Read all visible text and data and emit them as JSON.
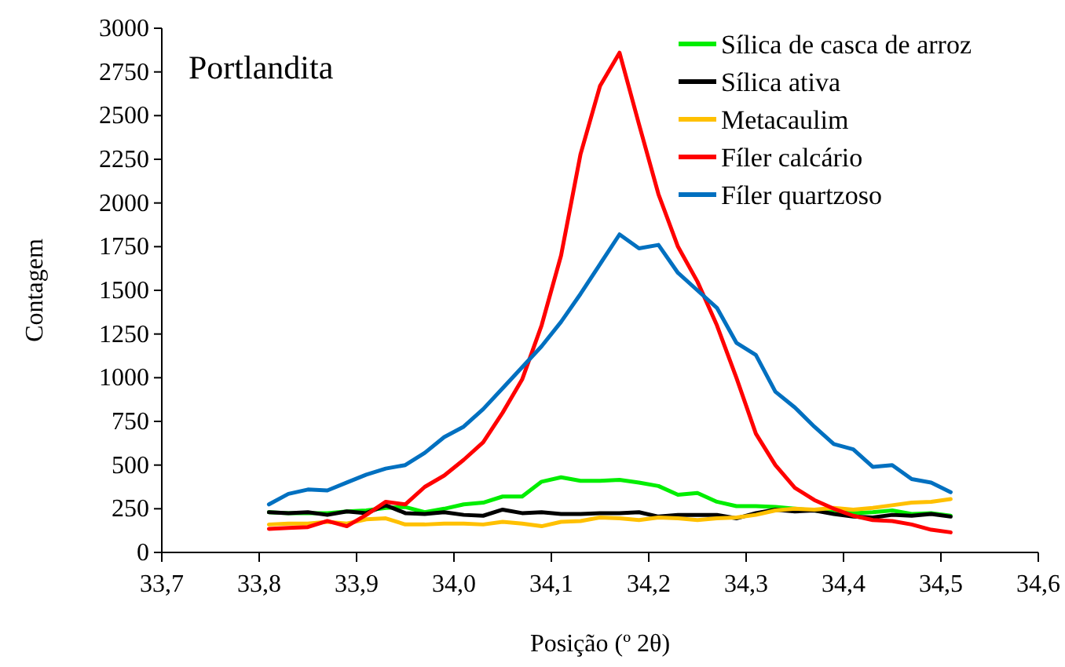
{
  "chart_data": {
    "type": "line",
    "title": "Portlandita",
    "xlabel": "Posição (º 2θ)",
    "ylabel": "Contagem",
    "x": [
      33.81,
      33.83,
      33.85,
      33.87,
      33.89,
      33.91,
      33.93,
      33.95,
      33.97,
      33.99,
      34.01,
      34.03,
      34.05,
      34.07,
      34.09,
      34.11,
      34.13,
      34.15,
      34.17,
      34.19,
      34.21,
      34.23,
      34.25,
      34.27,
      34.29,
      34.31,
      34.33,
      34.35,
      34.37,
      34.39,
      34.41,
      34.43,
      34.45,
      34.47,
      34.49,
      34.51
    ],
    "series": [
      {
        "name": "Sílica de casca de arroz",
        "color": "#00ee00",
        "values": [
          230,
          225,
          225,
          225,
          235,
          240,
          255,
          260,
          230,
          250,
          275,
          285,
          320,
          320,
          405,
          430,
          410,
          410,
          415,
          400,
          380,
          330,
          340,
          290,
          265,
          265,
          260,
          250,
          240,
          230,
          225,
          230,
          240,
          220,
          225,
          210
        ]
      },
      {
        "name": "Sílica ativa",
        "color": "#000000",
        "values": [
          230,
          225,
          230,
          215,
          235,
          225,
          270,
          225,
          220,
          230,
          215,
          210,
          245,
          225,
          230,
          220,
          220,
          225,
          225,
          230,
          205,
          215,
          215,
          215,
          195,
          225,
          245,
          235,
          240,
          220,
          205,
          200,
          215,
          210,
          220,
          205
        ]
      },
      {
        "name": "Metacaulim",
        "color": "#ffc000",
        "values": [
          160,
          165,
          165,
          175,
          165,
          190,
          195,
          160,
          160,
          165,
          165,
          160,
          175,
          165,
          150,
          175,
          180,
          200,
          195,
          185,
          200,
          195,
          185,
          195,
          200,
          215,
          240,
          250,
          245,
          255,
          245,
          255,
          270,
          285,
          290,
          305
        ]
      },
      {
        "name": "Fíler calcário",
        "color": "#ff0000",
        "values": [
          135,
          140,
          145,
          180,
          150,
          215,
          290,
          275,
          375,
          440,
          530,
          630,
          800,
          990,
          1300,
          1700,
          2280,
          2670,
          2860,
          2450,
          2050,
          1750,
          1550,
          1300,
          1000,
          680,
          500,
          370,
          300,
          250,
          210,
          185,
          180,
          160,
          130,
          115
        ]
      },
      {
        "name": "Fíler quartzoso",
        "color": "#0070c0",
        "values": [
          275,
          335,
          360,
          355,
          400,
          445,
          480,
          500,
          570,
          660,
          720,
          820,
          940,
          1060,
          1180,
          1320,
          1480,
          1650,
          1820,
          1740,
          1760,
          1600,
          1500,
          1400,
          1200,
          1130,
          920,
          830,
          720,
          620,
          590,
          490,
          500,
          420,
          400,
          345
        ]
      }
    ],
    "xlim": [
      33.7,
      34.6
    ],
    "xticks": [
      {
        "value": 33.7,
        "label": "33,7"
      },
      {
        "value": 33.8,
        "label": "33,8"
      },
      {
        "value": 33.9,
        "label": "33,9"
      },
      {
        "value": 34.0,
        "label": "34,0"
      },
      {
        "value": 34.1,
        "label": "34,1"
      },
      {
        "value": 34.2,
        "label": "34,2"
      },
      {
        "value": 34.3,
        "label": "34,3"
      },
      {
        "value": 34.4,
        "label": "34,4"
      },
      {
        "value": 34.5,
        "label": "34,5"
      },
      {
        "value": 34.6,
        "label": "34,6"
      }
    ],
    "ylim": [
      0,
      3000
    ],
    "yticks": [
      0,
      250,
      500,
      750,
      1000,
      1250,
      1500,
      1750,
      2000,
      2250,
      2500,
      2750,
      3000
    ],
    "grid": false,
    "legend": "top right",
    "marker": "none",
    "line_style": "solid"
  }
}
